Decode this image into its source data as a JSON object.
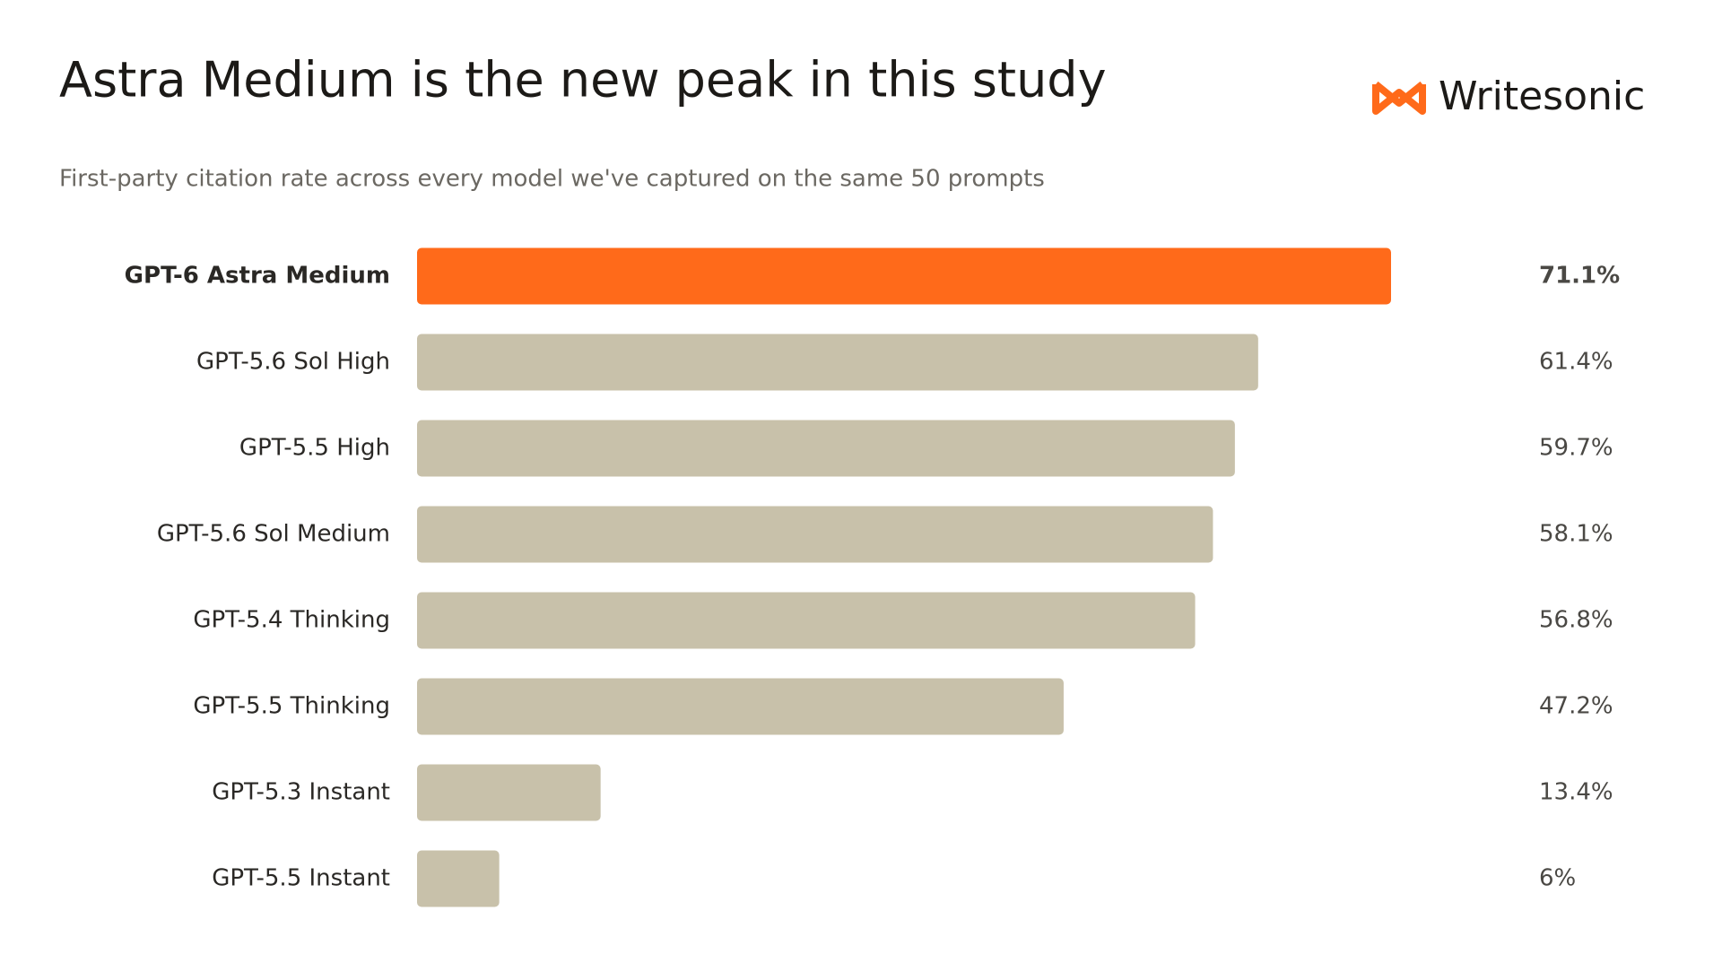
{
  "chart_data": {
    "type": "bar",
    "orientation": "horizontal",
    "title": "Astra Medium is the new peak in this study",
    "subtitle": "First-party citation rate across every model we've captured on the same 50 prompts",
    "brand": "Writesonic",
    "categories": [
      "GPT-6 Astra Medium",
      "GPT-5.6 Sol High",
      "GPT-5.5 High",
      "GPT-5.6 Sol Medium",
      "GPT-5.4 Thinking",
      "GPT-5.5 Thinking",
      "GPT-5.3 Instant",
      "GPT-5.5 Instant"
    ],
    "values": [
      71.1,
      61.4,
      59.7,
      58.1,
      56.8,
      47.2,
      13.4,
      6
    ],
    "value_labels": [
      "71.1%",
      "61.4%",
      "59.7%",
      "58.1%",
      "56.8%",
      "47.2%",
      "13.4%",
      "6%"
    ],
    "color": "#c8c1aa",
    "highlight_index": 0,
    "highlight_color": "#ff6a1a",
    "highlight_label_color": "#c0360c"
  }
}
